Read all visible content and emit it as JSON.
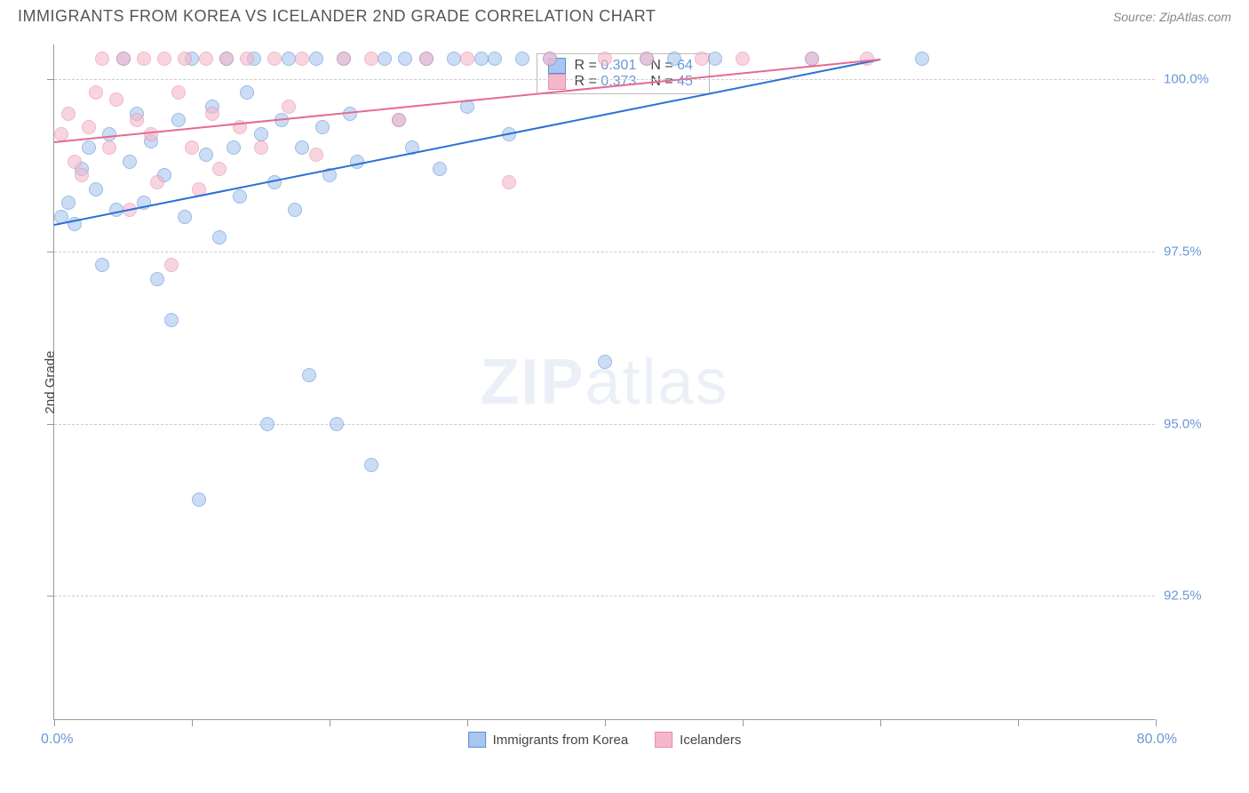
{
  "title": "IMMIGRANTS FROM KOREA VS ICELANDER 2ND GRADE CORRELATION CHART",
  "source": "Source: ZipAtlas.com",
  "y_axis_title": "2nd Grade",
  "watermark_bold": "ZIP",
  "watermark_light": "atlas",
  "chart": {
    "type": "scatter",
    "background_color": "#ffffff",
    "grid_color": "#cccccc",
    "axis_color": "#999999",
    "label_color": "#6b97d6",
    "xlim": [
      0,
      80
    ],
    "ylim": [
      90.7,
      100.5
    ],
    "x_tick_positions": [
      0,
      10,
      20,
      30,
      40,
      50,
      60,
      70,
      80
    ],
    "x_label_low": "0.0%",
    "x_label_high": "80.0%",
    "y_ticks": [
      {
        "value": 92.5,
        "label": "92.5%"
      },
      {
        "value": 95.0,
        "label": "95.0%"
      },
      {
        "value": 97.5,
        "label": "97.5%"
      },
      {
        "value": 100.0,
        "label": "100.0%"
      }
    ],
    "marker_radius": 8,
    "marker_opacity": 0.6,
    "line_width": 2,
    "title_fontsize": 18,
    "tick_fontsize": 15
  },
  "series": [
    {
      "name": "Immigrants from Korea",
      "fill_color": "#a7c7f0",
      "stroke_color": "#5a8fd6",
      "line_color": "#2a6fd6",
      "R": "0.301",
      "N": "64",
      "trend": {
        "x1": 0,
        "y1": 97.9,
        "x2": 60,
        "y2": 100.3
      },
      "points": [
        [
          0.5,
          98.0
        ],
        [
          1,
          98.2
        ],
        [
          1.5,
          97.9
        ],
        [
          2,
          98.7
        ],
        [
          2.5,
          99.0
        ],
        [
          3,
          98.4
        ],
        [
          3.5,
          97.3
        ],
        [
          4,
          99.2
        ],
        [
          4.5,
          98.1
        ],
        [
          5,
          100.3
        ],
        [
          5.5,
          98.8
        ],
        [
          6,
          99.5
        ],
        [
          6.5,
          98.2
        ],
        [
          7,
          99.1
        ],
        [
          7.5,
          97.1
        ],
        [
          8,
          98.6
        ],
        [
          8.5,
          96.5
        ],
        [
          9,
          99.4
        ],
        [
          9.5,
          98.0
        ],
        [
          10,
          100.3
        ],
        [
          10.5,
          93.9
        ],
        [
          11,
          98.9
        ],
        [
          11.5,
          99.6
        ],
        [
          12,
          97.7
        ],
        [
          12.5,
          100.3
        ],
        [
          13,
          99.0
        ],
        [
          13.5,
          98.3
        ],
        [
          14,
          99.8
        ],
        [
          14.5,
          100.3
        ],
        [
          15,
          99.2
        ],
        [
          15.5,
          95.0
        ],
        [
          16,
          98.5
        ],
        [
          16.5,
          99.4
        ],
        [
          17,
          100.3
        ],
        [
          17.5,
          98.1
        ],
        [
          18,
          99.0
        ],
        [
          18.5,
          95.7
        ],
        [
          19,
          100.3
        ],
        [
          19.5,
          99.3
        ],
        [
          20,
          98.6
        ],
        [
          20.5,
          95.0
        ],
        [
          21,
          100.3
        ],
        [
          21.5,
          99.5
        ],
        [
          22,
          98.8
        ],
        [
          23,
          94.4
        ],
        [
          24,
          100.3
        ],
        [
          25,
          99.4
        ],
        [
          25.5,
          100.3
        ],
        [
          26,
          99.0
        ],
        [
          27,
          100.3
        ],
        [
          28,
          98.7
        ],
        [
          29,
          100.3
        ],
        [
          30,
          99.6
        ],
        [
          31,
          100.3
        ],
        [
          32,
          100.3
        ],
        [
          33,
          99.2
        ],
        [
          34,
          100.3
        ],
        [
          36,
          100.3
        ],
        [
          40,
          95.9
        ],
        [
          43,
          100.3
        ],
        [
          45,
          100.3
        ],
        [
          48,
          100.3
        ],
        [
          55,
          100.3
        ],
        [
          63,
          100.3
        ]
      ]
    },
    {
      "name": "Icelanders",
      "fill_color": "#f5b8ca",
      "stroke_color": "#e68aa8",
      "line_color": "#e56a93",
      "R": "0.373",
      "N": "45",
      "trend": {
        "x1": 0,
        "y1": 99.1,
        "x2": 60,
        "y2": 100.3
      },
      "points": [
        [
          0.5,
          99.2
        ],
        [
          1,
          99.5
        ],
        [
          1.5,
          98.8
        ],
        [
          2,
          98.6
        ],
        [
          2.5,
          99.3
        ],
        [
          3,
          99.8
        ],
        [
          3.5,
          100.3
        ],
        [
          4,
          99.0
        ],
        [
          4.5,
          99.7
        ],
        [
          5,
          100.3
        ],
        [
          5.5,
          98.1
        ],
        [
          6,
          99.4
        ],
        [
          6.5,
          100.3
        ],
        [
          7,
          99.2
        ],
        [
          7.5,
          98.5
        ],
        [
          8,
          100.3
        ],
        [
          8.5,
          97.3
        ],
        [
          9,
          99.8
        ],
        [
          9.5,
          100.3
        ],
        [
          10,
          99.0
        ],
        [
          10.5,
          98.4
        ],
        [
          11,
          100.3
        ],
        [
          11.5,
          99.5
        ],
        [
          12,
          98.7
        ],
        [
          12.5,
          100.3
        ],
        [
          13.5,
          99.3
        ],
        [
          14,
          100.3
        ],
        [
          15,
          99.0
        ],
        [
          16,
          100.3
        ],
        [
          17,
          99.6
        ],
        [
          18,
          100.3
        ],
        [
          19,
          98.9
        ],
        [
          21,
          100.3
        ],
        [
          23,
          100.3
        ],
        [
          25,
          99.4
        ],
        [
          27,
          100.3
        ],
        [
          30,
          100.3
        ],
        [
          33,
          98.5
        ],
        [
          36,
          100.3
        ],
        [
          40,
          100.3
        ],
        [
          43,
          100.3
        ],
        [
          47,
          100.3
        ],
        [
          50,
          100.3
        ],
        [
          55,
          100.3
        ],
        [
          59,
          100.3
        ]
      ]
    }
  ],
  "legend": {
    "series1_label": "Immigrants from Korea",
    "series2_label": "Icelanders"
  },
  "stats_labels": {
    "r_prefix": "R = ",
    "n_prefix": "N = "
  }
}
